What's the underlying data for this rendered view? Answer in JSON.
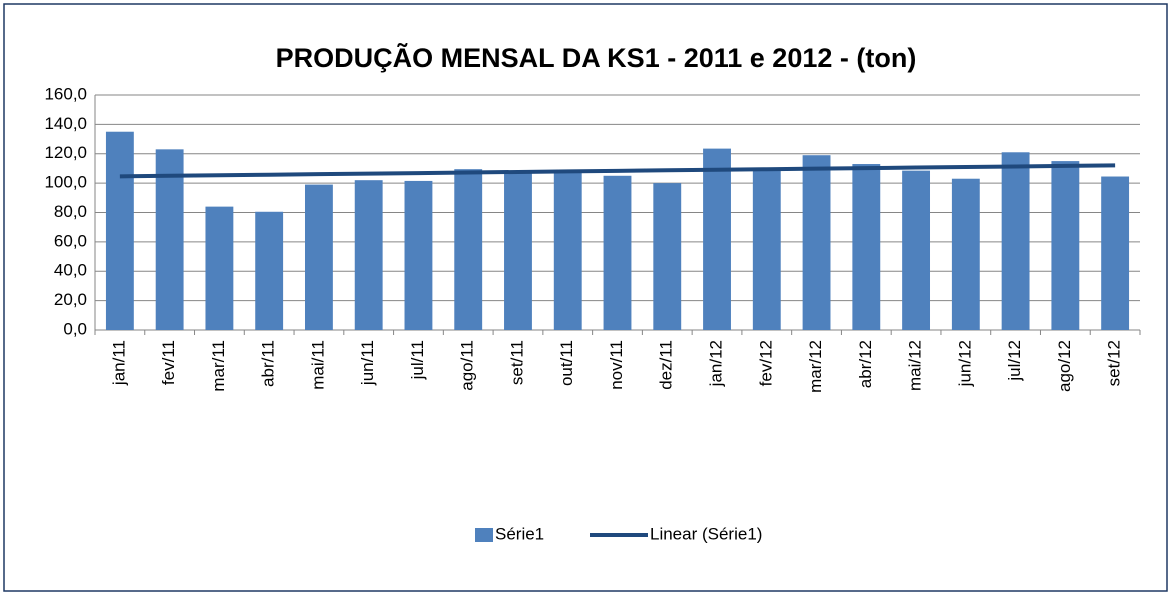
{
  "chart_data": {
    "type": "bar",
    "title": "PRODUÇÃO MENSAL DA KS1 - 2011 e 2012 - (ton)",
    "categories": [
      "jan/11",
      "fev/11",
      "mar/11",
      "abr/11",
      "mai/11",
      "jun/11",
      "jul/11",
      "ago/11",
      "set/11",
      "out/11",
      "nov/11",
      "dez/11",
      "jan/12",
      "fev/12",
      "mar/12",
      "abr/12",
      "mai/12",
      "jun/12",
      "jul/12",
      "ago/12",
      "set/12"
    ],
    "series": [
      {
        "name": "Série1",
        "type": "bar",
        "color": "#4f81bd",
        "values": [
          135,
          123,
          84,
          80.5,
          99,
          102,
          101.5,
          109.5,
          107,
          108,
          105,
          100,
          123.5,
          108.5,
          119,
          113,
          108.5,
          103,
          121,
          115,
          104.5
        ]
      },
      {
        "name": "Linear (Série1)",
        "type": "line",
        "color": "#1f497d",
        "values": [
          104.6,
          104.98,
          105.35,
          105.73,
          106.1,
          106.48,
          106.85,
          107.23,
          107.6,
          107.98,
          108.35,
          108.73,
          109.1,
          109.48,
          109.85,
          110.23,
          110.6,
          110.98,
          111.35,
          111.73,
          112.1
        ]
      }
    ],
    "ylim": [
      0,
      160
    ],
    "yticks": [
      {
        "value": 0,
        "label": "0,0"
      },
      {
        "value": 20,
        "label": "20,0"
      },
      {
        "value": 40,
        "label": "40,0"
      },
      {
        "value": 60,
        "label": "60,0"
      },
      {
        "value": 80,
        "label": "80,0"
      },
      {
        "value": 100,
        "label": "100,0"
      },
      {
        "value": 120,
        "label": "120,0"
      },
      {
        "value": 140,
        "label": "140,0"
      },
      {
        "value": 160,
        "label": "160,0"
      }
    ],
    "grid": true,
    "legend": "bottom"
  }
}
